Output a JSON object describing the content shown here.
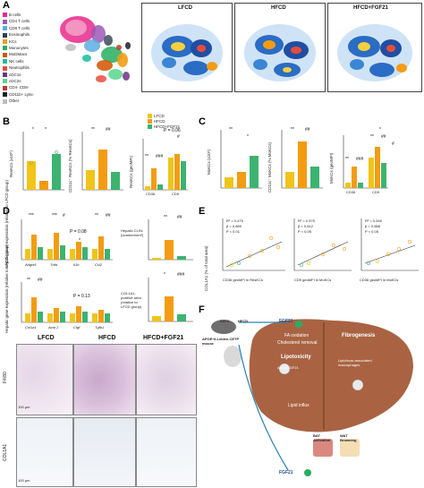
{
  "panels": {
    "A": "A",
    "B": "B",
    "C": "C",
    "D": "D",
    "E": "E",
    "F": "F"
  },
  "umap": {
    "groups": [
      "LFCD",
      "HFCD",
      "HFCD+FGF21"
    ],
    "legend": [
      {
        "label": "B cells",
        "color": "#e7298a"
      },
      {
        "label": "CD4 T cells",
        "color": "#9b59b6"
      },
      {
        "label": "CD8 T cells",
        "color": "#5dade2"
      },
      {
        "label": "Eosinophils",
        "color": "#2e4053"
      },
      {
        "label": "KCs",
        "color": "#f39c12"
      },
      {
        "label": "Monocytes",
        "color": "#27ae60"
      },
      {
        "label": "MoDMacs",
        "color": "#d35400"
      },
      {
        "label": "NK cells",
        "color": "#1abc9c"
      },
      {
        "label": "Neutrophils",
        "color": "#e74c3c"
      },
      {
        "label": "cDC1s",
        "color": "#6c3483"
      },
      {
        "label": "cDC2s",
        "color": "#58d68d"
      },
      {
        "label": "CD4- CD8-",
        "color": "#c0392b"
      },
      {
        "label": "CD11b+ Ly6c-",
        "color": "#17202a"
      },
      {
        "label": "Other",
        "color": "#bdbdbd"
      }
    ]
  },
  "legend_groups": [
    {
      "label": "LFCD",
      "color": "#f0c419"
    },
    {
      "label": "HFCD",
      "color": "#f39c12"
    },
    {
      "label": "HFCD+FGF21",
      "color": "#3cb371"
    }
  ],
  "panelB": {
    "ylabels": [
      "ResKCs (x10⁵)",
      "CD11c⁺ ResKCs (% ResKCs)",
      "ResKCs (geoMFI)"
    ],
    "xlabels": [
      "CD36",
      "CD9"
    ],
    "sig": [
      "*",
      "*",
      "**",
      "##",
      "**",
      "###",
      "P = 0.06",
      "#"
    ]
  },
  "panelC": {
    "ylabels": [
      "MoKCs (x10⁵)",
      "CD11c⁺ MoKCs (% MoKCs)",
      "MoKCs (geoMFI)"
    ],
    "xlabels": [
      "CD36",
      "CD9"
    ],
    "sig": [
      "**",
      "*",
      "**",
      "##",
      "**",
      "###",
      "**",
      "##",
      "*",
      "#"
    ]
  },
  "panelD": {
    "ylabel1": "Hepatic gene expression (relative to LFCD group)",
    "ylabel2": "Hepatic gene expression (relative to LFCD group)",
    "genes1": [
      "Adgre1",
      "Tnfa",
      "Il1b",
      "Ccl2"
    ],
    "genes2": [
      "Col1a1",
      "Acta 2",
      "Ctgf",
      "Tgfb1"
    ],
    "sig1": [
      "***",
      "***",
      "#",
      "P = 0.08",
      "*",
      "**",
      "##"
    ],
    "sig2": [
      "**",
      "##",
      "P = 0.13"
    ],
    "clsLabel": "Hepatic CLSs (number/mm²)",
    "colLabel": "COL1A1-positive area (relative to LFCD group)",
    "sig3": [
      "**",
      "##",
      "*",
      "###"
    ]
  },
  "panelE": {
    "stats": [
      {
        "r2": "R² = 0.475",
        "b": "β    = 0.689",
        "p": "P   < 0.01",
        "x": "CD36 geoMFI in ResKCs"
      },
      {
        "r2": "R² = 0.375",
        "b": "β    = 0.612",
        "p": "P   < 0.05",
        "x": "CD9 geoMFI in MoKCs"
      },
      {
        "r2": "R² = 0.346",
        "b": "β    = 0.588",
        "p": "P   < 0.05",
        "x": "CD36 geoMFI in MoKCs"
      }
    ],
    "ylabel": "COL1A1 (% of total area)",
    "yticks": [
      "0.08",
      "0.06",
      "0.04",
      "0.02"
    ]
  },
  "panelF": {
    "mouse": "APOE*3-Leiden.CETP mouse",
    "hfcd": "HFCD",
    "fgf21_top": "FGF21",
    "fgf21_bottom": "FGF21",
    "aav": "AAV8",
    "aav_liver": "AAV8-FGF21",
    "fa": "FA oxidation",
    "chol": "Cholesterol removal",
    "lipo": "Lipotoxicity",
    "fib": "Fibrogenesis",
    "lam": "Lipid/scar-associated macrophages",
    "lipid": "Lipid influx",
    "bat": "BAT Activation",
    "wat": "WAT Browning"
  },
  "ihc": {
    "cols": [
      "LFCD",
      "HFCD",
      "HFCD+FGF21"
    ],
    "rows": [
      "F4/80",
      "COL1A1"
    ],
    "scale": "100 μm"
  }
}
